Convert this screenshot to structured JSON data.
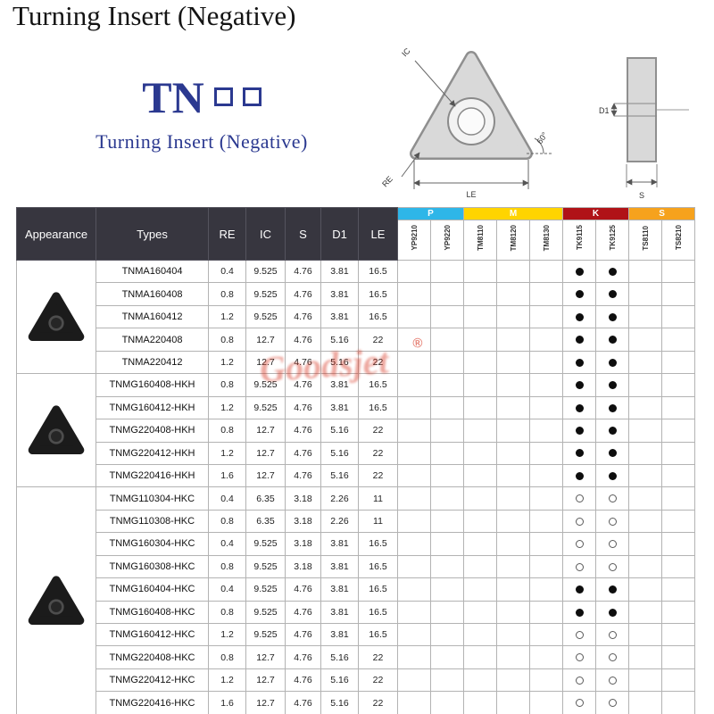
{
  "page": {
    "title": "Turning Insert (Negative)"
  },
  "logo": {
    "text": "TN",
    "subtitle": "Turning Insert (Negative)"
  },
  "drawing": {
    "ic": "IC",
    "re": "RE",
    "le": "LE",
    "angle": "60°",
    "d1": "D1",
    "s": "S"
  },
  "watermark": {
    "text": "Goodsjet",
    "reg": "®"
  },
  "table": {
    "headers": {
      "appearance": "Appearance",
      "types": "Types",
      "re": "RE",
      "ic": "IC",
      "s": "S",
      "d1": "D1",
      "le": "LE"
    },
    "header_bg": "#37363f",
    "grade_groups": [
      {
        "label": "P",
        "color": "#2eb6e8",
        "cols": [
          "YP9210",
          "YP9220"
        ]
      },
      {
        "label": "M",
        "color": "#ffd400",
        "cols": [
          "TM8110",
          "TM8120",
          "TM8130"
        ]
      },
      {
        "label": "K",
        "color": "#b01217",
        "cols": [
          "TK9115",
          "TK9125"
        ]
      },
      {
        "label": "S",
        "color": "#f6a21d",
        "cols": [
          "TS8110",
          "TS8210"
        ]
      }
    ],
    "groups": [
      {
        "start": 0,
        "count": 5
      },
      {
        "start": 5,
        "count": 5
      },
      {
        "start": 10,
        "count": 10
      }
    ],
    "rows": [
      {
        "type": "TNMA160404",
        "re": "0.4",
        "ic": "9.525",
        "s": "4.76",
        "d1": "3.81",
        "le": "16.5",
        "marks": [
          "",
          "",
          "",
          "",
          "",
          "f",
          "f",
          "",
          ""
        ]
      },
      {
        "type": "TNMA160408",
        "re": "0.8",
        "ic": "9.525",
        "s": "4.76",
        "d1": "3.81",
        "le": "16.5",
        "marks": [
          "",
          "",
          "",
          "",
          "",
          "f",
          "f",
          "",
          ""
        ]
      },
      {
        "type": "TNMA160412",
        "re": "1.2",
        "ic": "9.525",
        "s": "4.76",
        "d1": "3.81",
        "le": "16.5",
        "marks": [
          "",
          "",
          "",
          "",
          "",
          "f",
          "f",
          "",
          ""
        ]
      },
      {
        "type": "TNMA220408",
        "re": "0.8",
        "ic": "12.7",
        "s": "4.76",
        "d1": "5.16",
        "le": "22",
        "marks": [
          "",
          "",
          "",
          "",
          "",
          "f",
          "f",
          "",
          ""
        ]
      },
      {
        "type": "TNMA220412",
        "re": "1.2",
        "ic": "12.7",
        "s": "4.76",
        "d1": "5.16",
        "le": "22",
        "marks": [
          "",
          "",
          "",
          "",
          "",
          "f",
          "f",
          "",
          ""
        ]
      },
      {
        "type": "TNMG160408-HKH",
        "re": "0.8",
        "ic": "9.525",
        "s": "4.76",
        "d1": "3.81",
        "le": "16.5",
        "marks": [
          "",
          "",
          "",
          "",
          "",
          "f",
          "f",
          "",
          ""
        ]
      },
      {
        "type": "TNMG160412-HKH",
        "re": "1.2",
        "ic": "9.525",
        "s": "4.76",
        "d1": "3.81",
        "le": "16.5",
        "marks": [
          "",
          "",
          "",
          "",
          "",
          "f",
          "f",
          "",
          ""
        ]
      },
      {
        "type": "TNMG220408-HKH",
        "re": "0.8",
        "ic": "12.7",
        "s": "4.76",
        "d1": "5.16",
        "le": "22",
        "marks": [
          "",
          "",
          "",
          "",
          "",
          "f",
          "f",
          "",
          ""
        ]
      },
      {
        "type": "TNMG220412-HKH",
        "re": "1.2",
        "ic": "12.7",
        "s": "4.76",
        "d1": "5.16",
        "le": "22",
        "marks": [
          "",
          "",
          "",
          "",
          "",
          "f",
          "f",
          "",
          ""
        ]
      },
      {
        "type": "TNMG220416-HKH",
        "re": "1.6",
        "ic": "12.7",
        "s": "4.76",
        "d1": "5.16",
        "le": "22",
        "marks": [
          "",
          "",
          "",
          "",
          "",
          "f",
          "f",
          "",
          ""
        ]
      },
      {
        "type": "TNMG110304-HKC",
        "re": "0.4",
        "ic": "6.35",
        "s": "3.18",
        "d1": "2.26",
        "le": "11",
        "marks": [
          "",
          "",
          "",
          "",
          "",
          "o",
          "o",
          "",
          ""
        ]
      },
      {
        "type": "TNMG110308-HKC",
        "re": "0.8",
        "ic": "6.35",
        "s": "3.18",
        "d1": "2.26",
        "le": "11",
        "marks": [
          "",
          "",
          "",
          "",
          "",
          "o",
          "o",
          "",
          ""
        ]
      },
      {
        "type": "TNMG160304-HKC",
        "re": "0.4",
        "ic": "9.525",
        "s": "3.18",
        "d1": "3.81",
        "le": "16.5",
        "marks": [
          "",
          "",
          "",
          "",
          "",
          "o",
          "o",
          "",
          ""
        ]
      },
      {
        "type": "TNMG160308-HKC",
        "re": "0.8",
        "ic": "9.525",
        "s": "3.18",
        "d1": "3.81",
        "le": "16.5",
        "marks": [
          "",
          "",
          "",
          "",
          "",
          "o",
          "o",
          "",
          ""
        ]
      },
      {
        "type": "TNMG160404-HKC",
        "re": "0.4",
        "ic": "9.525",
        "s": "4.76",
        "d1": "3.81",
        "le": "16.5",
        "marks": [
          "",
          "",
          "",
          "",
          "",
          "f",
          "f",
          "",
          ""
        ]
      },
      {
        "type": "TNMG160408-HKC",
        "re": "0.8",
        "ic": "9.525",
        "s": "4.76",
        "d1": "3.81",
        "le": "16.5",
        "marks": [
          "",
          "",
          "",
          "",
          "",
          "f",
          "f",
          "",
          ""
        ]
      },
      {
        "type": "TNMG160412-HKC",
        "re": "1.2",
        "ic": "9.525",
        "s": "4.76",
        "d1": "3.81",
        "le": "16.5",
        "marks": [
          "",
          "",
          "",
          "",
          "",
          "o",
          "o",
          "",
          ""
        ]
      },
      {
        "type": "TNMG220408-HKC",
        "re": "0.8",
        "ic": "12.7",
        "s": "4.76",
        "d1": "5.16",
        "le": "22",
        "marks": [
          "",
          "",
          "",
          "",
          "",
          "o",
          "o",
          "",
          ""
        ]
      },
      {
        "type": "TNMG220412-HKC",
        "re": "1.2",
        "ic": "12.7",
        "s": "4.76",
        "d1": "5.16",
        "le": "22",
        "marks": [
          "",
          "",
          "",
          "",
          "",
          "o",
          "o",
          "",
          ""
        ]
      },
      {
        "type": "TNMG220416-HKC",
        "re": "1.6",
        "ic": "12.7",
        "s": "4.76",
        "d1": "5.16",
        "le": "22",
        "marks": [
          "",
          "",
          "",
          "",
          "",
          "o",
          "o",
          "",
          ""
        ]
      }
    ]
  }
}
